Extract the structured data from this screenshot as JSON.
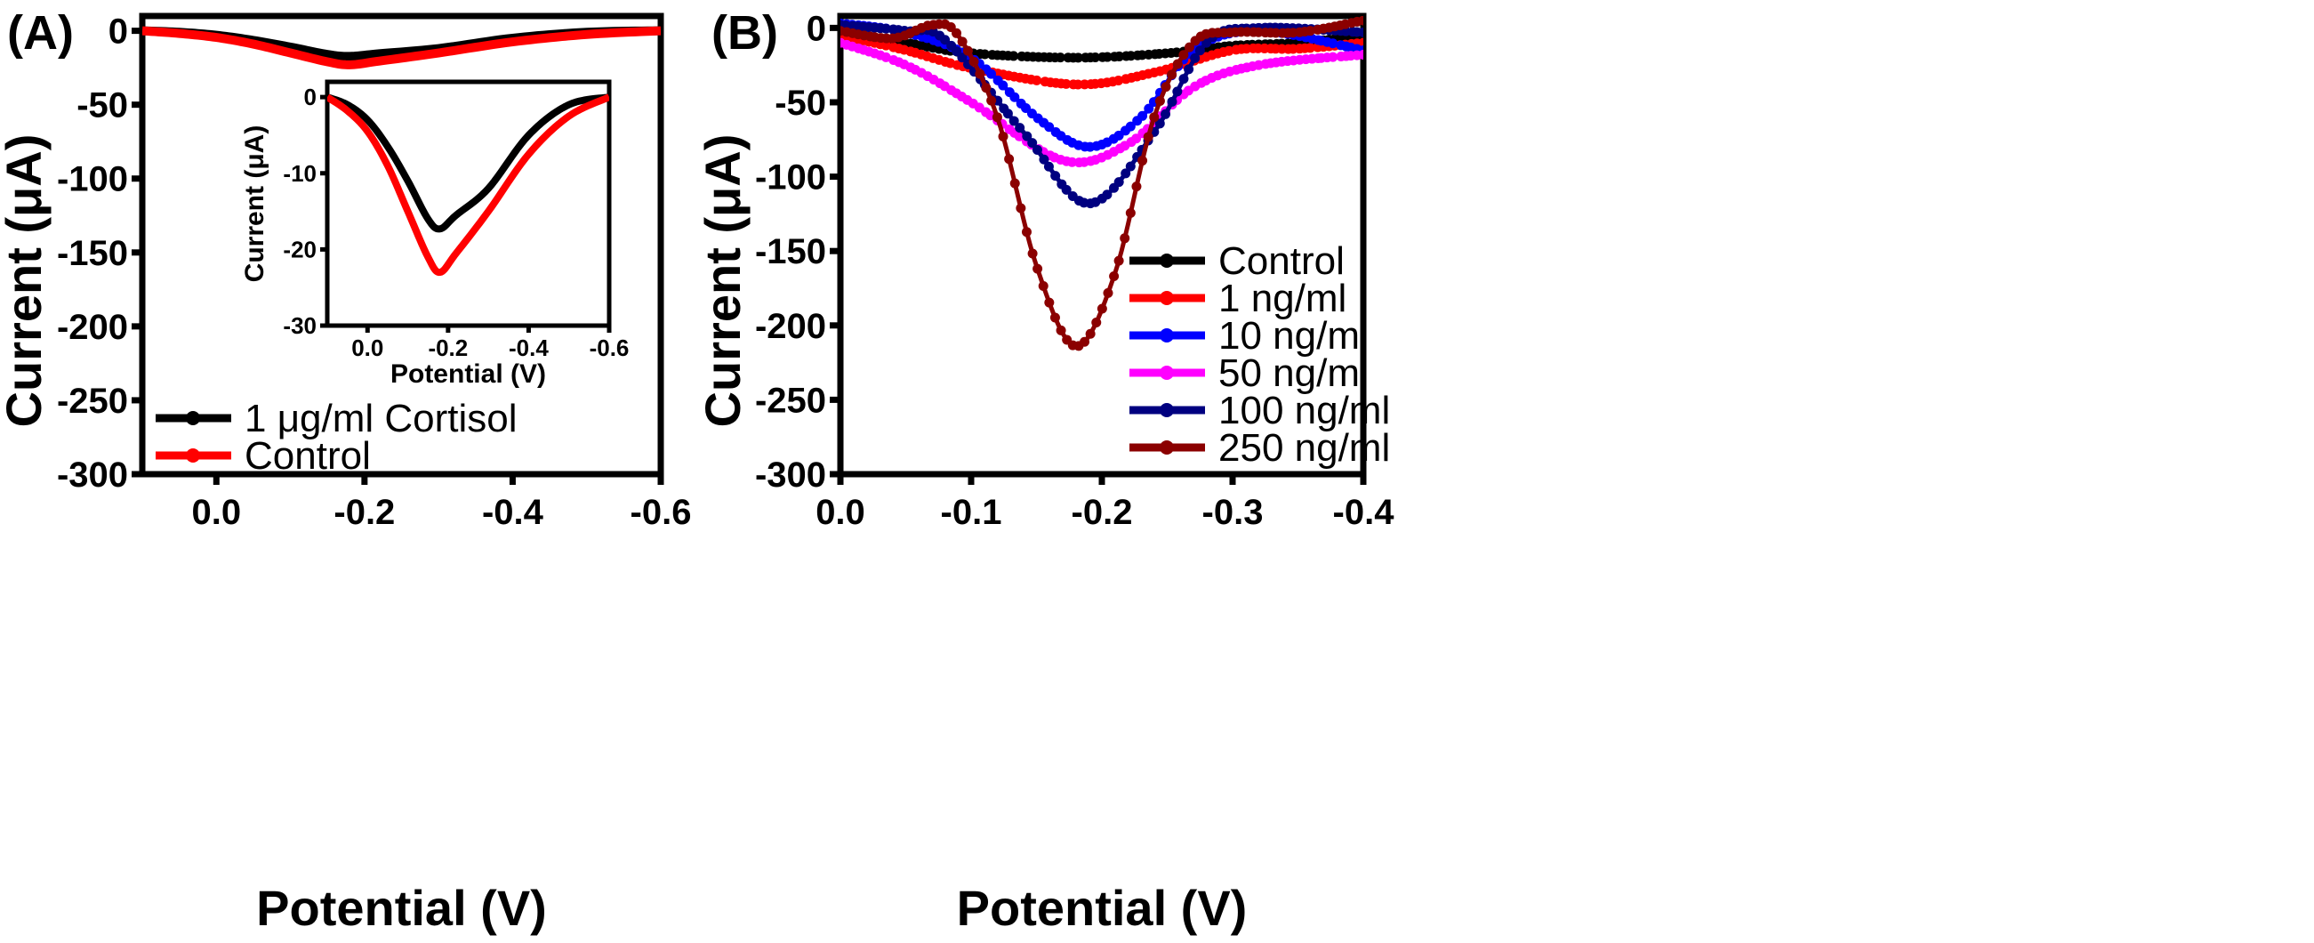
{
  "chart_data": [
    {
      "type": "line",
      "panel_label": "(A)",
      "xlabel": "Potential (V)",
      "ylabel": "Current (μA)",
      "xlim": [
        0.1,
        -0.6
      ],
      "ylim": [
        -300,
        10
      ],
      "xticks": [
        "0.0",
        "-0.2",
        "-0.4",
        "-0.6"
      ],
      "xtick_values": [
        0,
        -0.2,
        -0.4,
        -0.6
      ],
      "yticks": [
        "0",
        "-50",
        "-100",
        "-150",
        "-200",
        "-250",
        "-300"
      ],
      "ytick_values": [
        0,
        -50,
        -100,
        -150,
        -200,
        -250,
        -300
      ],
      "legend_position": "bottom-left",
      "series": [
        {
          "name": "1 μg/ml Cortisol",
          "color": "#000000",
          "points": [
            [
              0.1,
              0
            ],
            [
              0.05,
              -1
            ],
            [
              0,
              -3
            ],
            [
              -0.05,
              -6.5
            ],
            [
              -0.1,
              -11
            ],
            [
              -0.15,
              -16
            ],
            [
              -0.18,
              -17.3
            ],
            [
              -0.22,
              -15.5
            ],
            [
              -0.3,
              -12
            ],
            [
              -0.4,
              -5
            ],
            [
              -0.5,
              -1
            ],
            [
              -0.6,
              0
            ]
          ]
        },
        {
          "name": "Control",
          "color": "#ff0000",
          "points": [
            [
              0.1,
              0
            ],
            [
              0.05,
              -1.8
            ],
            [
              0,
              -4.5
            ],
            [
              -0.05,
              -9
            ],
            [
              -0.1,
              -15
            ],
            [
              -0.15,
              -21
            ],
            [
              -0.18,
              -23
            ],
            [
              -0.22,
              -20.5
            ],
            [
              -0.3,
              -15
            ],
            [
              -0.4,
              -7.5
            ],
            [
              -0.5,
              -2.5
            ],
            [
              -0.6,
              0
            ]
          ]
        }
      ],
      "inset": {
        "xlabel": "Potential (V)",
        "ylabel": "Current (μA)",
        "xlim": [
          0.1,
          -0.6
        ],
        "ylim": [
          -30,
          2
        ],
        "xticks": [
          "0.0",
          "-0.2",
          "-0.4",
          "-0.6"
        ],
        "xtick_values": [
          0,
          -0.2,
          -0.4,
          -0.6
        ],
        "yticks": [
          "0",
          "-10",
          "-20",
          "-30"
        ],
        "ytick_values": [
          0,
          -10,
          -20,
          -30
        ]
      }
    },
    {
      "type": "line",
      "panel_label": "(B)",
      "xlabel": "Potential (V)",
      "ylabel": "Current (μA)",
      "xlim": [
        0.0,
        -0.4
      ],
      "ylim": [
        -300,
        8
      ],
      "xticks": [
        "0.0",
        "-0.1",
        "-0.2",
        "-0.3",
        "-0.4"
      ],
      "xtick_values": [
        0,
        -0.1,
        -0.2,
        -0.3,
        -0.4
      ],
      "yticks": [
        "0",
        "-50",
        "-100",
        "-150",
        "-200",
        "-250",
        "-300"
      ],
      "ytick_values": [
        0,
        -50,
        -100,
        -150,
        -200,
        -250,
        -300
      ],
      "legend_position": "bottom-right",
      "series": [
        {
          "name": "Control",
          "color": "#000000",
          "points": [
            [
              0,
              -3
            ],
            [
              -0.05,
              -10
            ],
            [
              -0.1,
              -17
            ],
            [
              -0.18,
              -20
            ],
            [
              -0.25,
              -17
            ],
            [
              -0.3,
              -12
            ],
            [
              -0.35,
              -10
            ],
            [
              -0.4,
              -5
            ]
          ]
        },
        {
          "name": "1 ng/ml",
          "color": "#ff0000",
          "points": [
            [
              0,
              -5
            ],
            [
              -0.05,
              -15
            ],
            [
              -0.1,
              -27
            ],
            [
              -0.18,
              -38
            ],
            [
              -0.24,
              -30
            ],
            [
              -0.3,
              -15
            ],
            [
              -0.35,
              -14
            ],
            [
              -0.4,
              -10
            ]
          ]
        },
        {
          "name": "10 ng/ml",
          "color": "#0000ff",
          "points": [
            [
              0,
              3
            ],
            [
              -0.05,
              -3
            ],
            [
              -0.1,
              -20
            ],
            [
              -0.15,
              -60
            ],
            [
              -0.19,
              -80
            ],
            [
              -0.23,
              -60
            ],
            [
              -0.27,
              -15
            ],
            [
              -0.32,
              -2
            ],
            [
              -0.4,
              -15
            ]
          ]
        },
        {
          "name": "50 ng/ml",
          "color": "#ff00ff",
          "points": [
            [
              0,
              -10
            ],
            [
              -0.05,
              -25
            ],
            [
              -0.1,
              -50
            ],
            [
              -0.17,
              -89
            ],
            [
              -0.22,
              -78
            ],
            [
              -0.27,
              -40
            ],
            [
              -0.32,
              -25
            ],
            [
              -0.4,
              -18
            ]
          ]
        },
        {
          "name": "100 ng/ml",
          "color": "#000080",
          "points": [
            [
              0,
              2
            ],
            [
              -0.05,
              -2
            ],
            [
              -0.08,
              -8
            ],
            [
              -0.14,
              -70
            ],
            [
              -0.19,
              -118
            ],
            [
              -0.24,
              -70
            ],
            [
              -0.28,
              -10
            ],
            [
              -0.32,
              0
            ],
            [
              -0.4,
              -3
            ]
          ]
        },
        {
          "name": "250 ng/ml",
          "color": "#8b0000",
          "points": [
            [
              0,
              -2
            ],
            [
              -0.04,
              -7
            ],
            [
              -0.07,
              2
            ],
            [
              -0.09,
              -5
            ],
            [
              -0.12,
              -60
            ],
            [
              -0.15,
              -160
            ],
            [
              -0.18,
              -214
            ],
            [
              -0.21,
              -165
            ],
            [
              -0.24,
              -60
            ],
            [
              -0.27,
              -10
            ],
            [
              -0.3,
              -3
            ],
            [
              -0.35,
              -3
            ],
            [
              -0.4,
              5
            ]
          ]
        }
      ]
    }
  ]
}
